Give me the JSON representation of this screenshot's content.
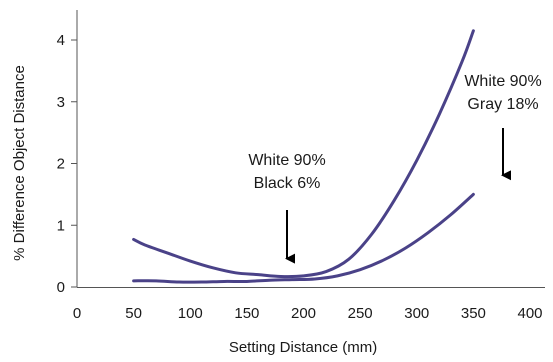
{
  "chart_data": {
    "type": "line",
    "title": "",
    "xlabel": "Setting Distance (mm)",
    "ylabel": "% Difference Object Distance",
    "xlim": [
      0,
      400
    ],
    "ylim": [
      0,
      4.5
    ],
    "xticks": [
      0,
      50,
      100,
      150,
      200,
      250,
      300,
      350,
      400
    ],
    "yticks": [
      0,
      1,
      2,
      3,
      4
    ],
    "grid": false,
    "legend": "none",
    "line_color": "#4a4288",
    "series": [
      {
        "x": [
          50,
          60,
          80,
          100,
          120,
          140,
          160,
          180,
          200,
          220,
          240,
          260,
          280,
          300,
          320,
          340,
          350
        ],
        "values": [
          0.77,
          0.68,
          0.55,
          0.42,
          0.31,
          0.23,
          0.2,
          0.17,
          0.18,
          0.25,
          0.45,
          0.85,
          1.4,
          2.05,
          2.8,
          3.65,
          4.15
        ]
      },
      {
        "x": [
          50,
          70,
          90,
          110,
          130,
          150,
          170,
          190,
          210,
          230,
          250,
          270,
          290,
          310,
          330,
          350
        ],
        "values": [
          0.1,
          0.1,
          0.08,
          0.08,
          0.09,
          0.09,
          0.11,
          0.12,
          0.13,
          0.18,
          0.28,
          0.43,
          0.63,
          0.88,
          1.17,
          1.5
        ]
      }
    ],
    "annotations": [
      {
        "lines": [
          "White 90%",
          "Black 6%"
        ],
        "arrow_to": [
          183,
          0.2
        ]
      },
      {
        "lines": [
          "White 90%",
          "Gray 18%"
        ],
        "arrow_to": [
          350,
          1.55
        ]
      }
    ]
  }
}
